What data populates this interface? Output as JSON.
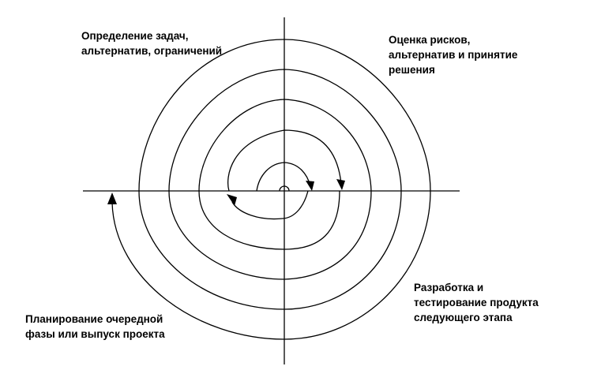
{
  "quadrant_labels": {
    "top_left": [
      "Определение задач,",
      "альтернатив, ограничений"
    ],
    "top_right": [
      "Оценка рисков,",
      "альтернатив и принятие",
      "решения"
    ],
    "bottom_right": [
      "Разработка и",
      "тестирование продукта",
      "следующего этапа"
    ],
    "bottom_left": [
      "Планирование очередной",
      "фазы или выпуск проекта"
    ]
  },
  "colors": {
    "line": "#000000",
    "background": "#ffffff"
  }
}
